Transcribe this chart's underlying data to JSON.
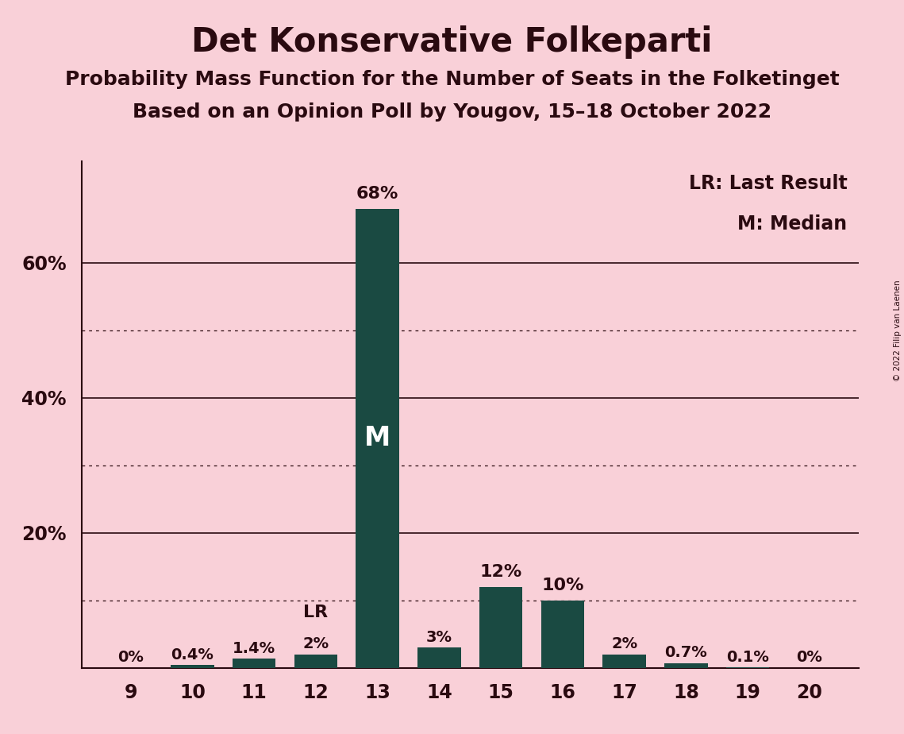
{
  "title": "Det Konservative Folkeparti",
  "subtitle1": "Probability Mass Function for the Number of Seats in the Folketinget",
  "subtitle2": "Based on an Opinion Poll by Yougov, 15–18 October 2022",
  "copyright": "© 2022 Filip van Laenen",
  "seats": [
    9,
    10,
    11,
    12,
    13,
    14,
    15,
    16,
    17,
    18,
    19,
    20
  ],
  "probabilities": [
    0.0,
    0.4,
    1.4,
    2.0,
    68.0,
    3.0,
    12.0,
    10.0,
    2.0,
    0.7,
    0.1,
    0.0
  ],
  "labels": [
    "0%",
    "0.4%",
    "1.4%",
    "2%",
    "68%",
    "3%",
    "12%",
    "10%",
    "2%",
    "0.7%",
    "0.1%",
    "0%"
  ],
  "bar_color": "#1a4a42",
  "background_color": "#f9d0d8",
  "text_color": "#2a0a10",
  "median_seat": 13,
  "last_result_seat": 12,
  "legend_lr": "LR: Last Result",
  "legend_m": "M: Median",
  "median_label": "M",
  "lr_label": "LR",
  "ylim": [
    0,
    75
  ],
  "dotted_gridlines": [
    10,
    30,
    50
  ],
  "solid_gridlines": [
    20,
    40,
    60
  ]
}
